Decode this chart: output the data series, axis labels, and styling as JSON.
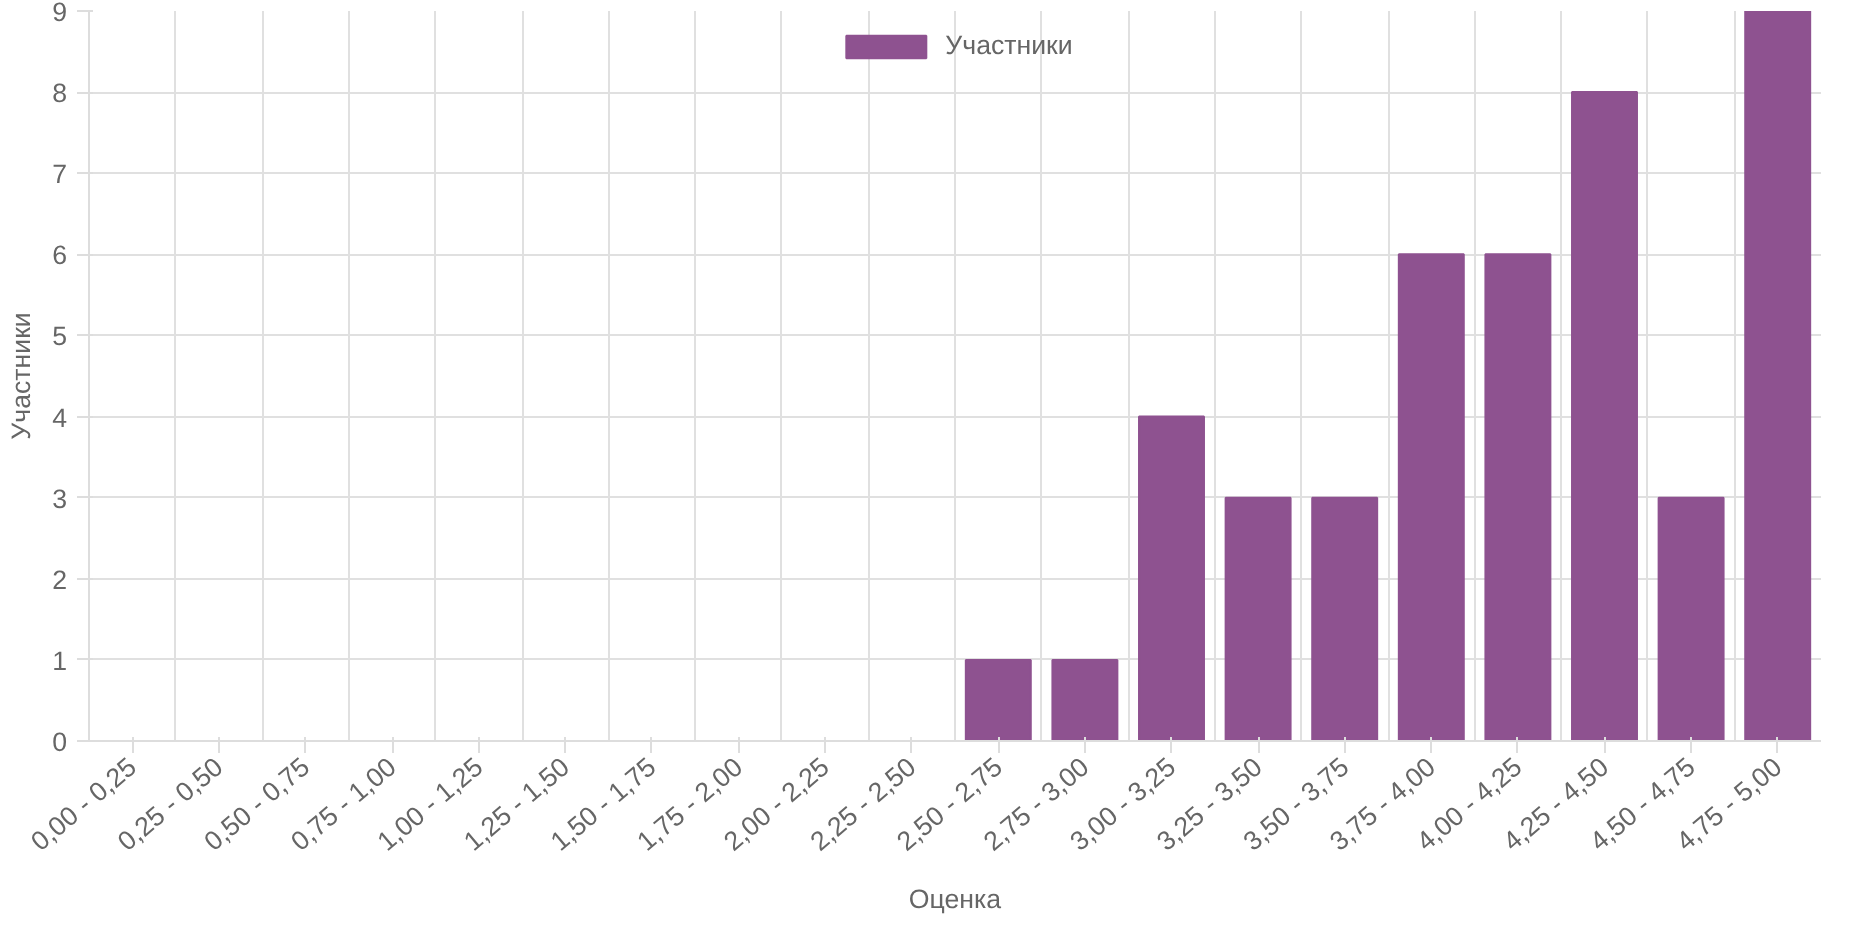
{
  "chart_data": {
    "type": "bar",
    "xlabel": "Оценка",
    "ylabel": "Участники",
    "categories": [
      "0,00 - 0,25",
      "0,25 - 0,50",
      "0,50 - 0,75",
      "0,75 - 1,00",
      "1,00 - 1,25",
      "1,25 - 1,50",
      "1,50 - 1,75",
      "1,75 - 2,00",
      "2,00 - 2,25",
      "2,25 - 2,50",
      "2,50 - 2,75",
      "2,75 - 3,00",
      "3,00 - 3,25",
      "3,25 - 3,50",
      "3,50 - 3,75",
      "3,75 - 4,00",
      "4,00 - 4,25",
      "4,25 - 4,50",
      "4,50 - 4,75",
      "4,75 - 5,00"
    ],
    "series": [
      {
        "name": "Участники",
        "color": "#8e5290",
        "values": [
          0,
          0,
          0,
          0,
          0,
          0,
          0,
          0,
          0,
          0,
          1,
          1,
          4,
          3,
          3,
          6,
          6,
          8,
          3,
          9
        ]
      }
    ],
    "ylim": [
      0,
      9
    ],
    "yticks": [
      0,
      1,
      2,
      3,
      4,
      5,
      6,
      7,
      8,
      9
    ],
    "grid": true,
    "legend": "top"
  }
}
